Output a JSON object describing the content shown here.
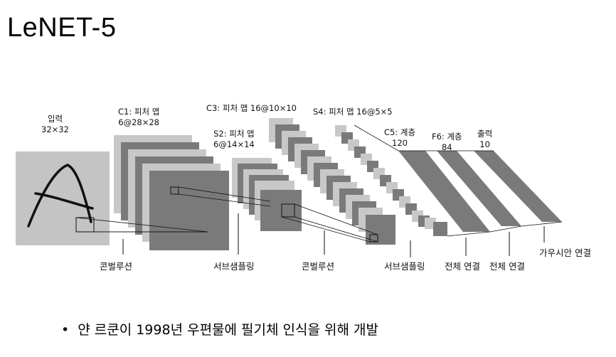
{
  "title": "LeNET-5",
  "labels": {
    "input": [
      "입력",
      "32×32"
    ],
    "c1": [
      "C1: 피처 맵",
      "6@28×28"
    ],
    "s2": [
      "S2: 피처 맵",
      "6@14×14"
    ],
    "c3": [
      "C3: 피처 맵 16@10×10"
    ],
    "s4": [
      "S4: 피처 맵 16@5×5"
    ],
    "c5": [
      "C5: 계층",
      "120"
    ],
    "f6": [
      "F6: 계층",
      "84"
    ],
    "output": [
      "출력",
      "10"
    ]
  },
  "operations": {
    "conv1": "콘벌루션",
    "sub1": "서브샘플링",
    "conv2": "콘벌루션",
    "sub2": "서브샘플링",
    "full1": "전체 연결",
    "full2": "전체 연결",
    "gauss": "가우시안 연결"
  },
  "bullet": "얀 르쿤이 1998년 우편물에 필기체 인식을 위해 개발",
  "colors": {
    "light": "#c8c8c8",
    "dark": "#7a7a7a",
    "input_bg": "#c4c4c4"
  }
}
